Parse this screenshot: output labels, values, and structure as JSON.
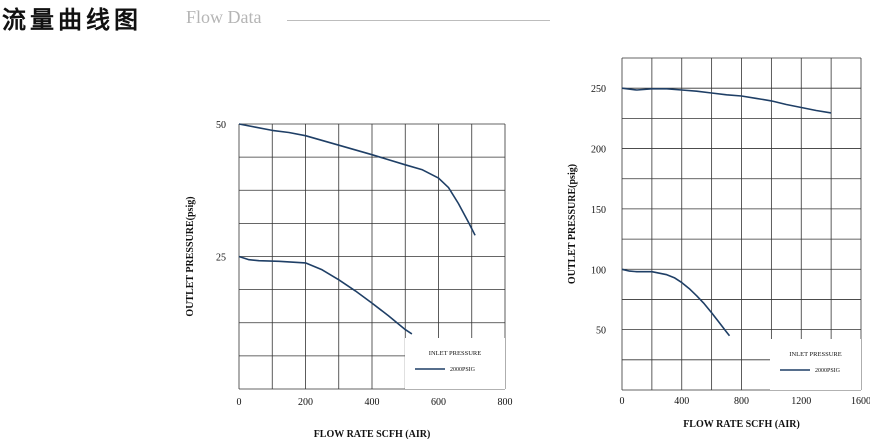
{
  "header": {
    "title_cn": "流量曲线图",
    "title_en": "Flow Data"
  },
  "chart_data": [
    {
      "type": "line",
      "xlabel": "FLOW RATE SCFH (AIR)",
      "ylabel": "OUTLET PRESSURE(psig)",
      "xlim": [
        0,
        800
      ],
      "ylim": [
        0,
        50
      ],
      "x_ticks": [
        0,
        200,
        400,
        600,
        800
      ],
      "y_ticks": [
        25,
        50
      ],
      "grid": true,
      "legend": {
        "title": "INLET PRESSURE",
        "entries": [
          "2000PSIG"
        ],
        "position": "bottom-right"
      },
      "series": [
        {
          "name": "2000PSIG",
          "color": "#1f3f66",
          "x": [
            0,
            50,
            100,
            150,
            200,
            300,
            400,
            500,
            550,
            600,
            630,
            660,
            690,
            710
          ],
          "y": [
            50,
            49.4,
            48.8,
            48.4,
            47.8,
            46,
            44.2,
            42.3,
            41.4,
            39.8,
            38,
            35,
            31.5,
            29
          ]
        },
        {
          "name": "2000PSIG",
          "color": "#1f3f66",
          "x": [
            0,
            30,
            60,
            120,
            200,
            250,
            300,
            350,
            400,
            450,
            500,
            520
          ],
          "y": [
            25,
            24.4,
            24.2,
            24.1,
            23.8,
            22.5,
            20.6,
            18.5,
            16.2,
            13.8,
            11.2,
            10.4
          ]
        }
      ]
    },
    {
      "type": "line",
      "xlabel": "FLOW RATE SCFH (AIR)",
      "ylabel": "OUTLET PRESSURE(psig)",
      "xlim": [
        0,
        1600
      ],
      "ylim": [
        0,
        275
      ],
      "x_ticks": [
        0,
        400,
        800,
        1200,
        1600
      ],
      "y_ticks": [
        50,
        100,
        150,
        200,
        250
      ],
      "grid": true,
      "legend": {
        "title": "INLET PRESSURE",
        "entries": [
          "2000PSIG"
        ],
        "position": "bottom-right"
      },
      "series": [
        {
          "name": "2000PSIG",
          "color": "#1f3f66",
          "x": [
            0,
            100,
            200,
            300,
            400,
            500,
            600,
            700,
            800,
            900,
            1000,
            1100,
            1200,
            1300,
            1400
          ],
          "y": [
            250,
            248.5,
            249.5,
            249.5,
            248.5,
            247.5,
            246,
            244.5,
            243.5,
            241.5,
            239.5,
            236.5,
            234,
            231.5,
            229.5
          ]
        },
        {
          "name": "2000PSIG",
          "color": "#1f3f66",
          "x": [
            0,
            50,
            100,
            200,
            300,
            350,
            400,
            450,
            500,
            550,
            600,
            650,
            700,
            720
          ],
          "y": [
            100,
            98.5,
            98,
            98,
            95.5,
            93,
            89,
            84,
            78,
            71.5,
            64,
            56,
            48,
            45
          ]
        }
      ]
    }
  ]
}
